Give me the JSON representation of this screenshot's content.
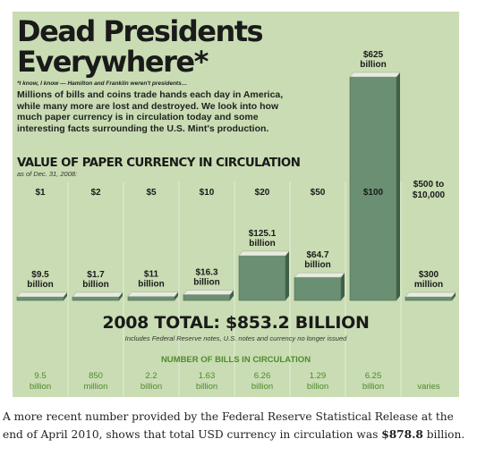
{
  "title_line1": "Dead Presidents",
  "title_line2": "Everywhere*",
  "footnote": "*I know, I know — Hamilton and Franklin weren't presidents…",
  "intro": "Millions of bills and coins trade hands each day in America, while many more are lost and destroyed. We look into how much paper currency is in circulation today and some interesting facts surrounding the U.S. Mint's production.",
  "chart_title": "VALUE OF PAPER CURRENCY IN CIRCULATION",
  "as_of": "as of Dec. 31, 2008:",
  "total": "2008 TOTAL: $853.2 BILLION",
  "total_note": "Includes Federal Reserve notes, U.S. notes and currency no longer issued",
  "bills_heading": "NUMBER OF BILLS IN CIRCULATION",
  "caption": {
    "before": "A more recent number provided by the Federal Reserve Statistical Release at the end of April 2010, shows that total USD currency in circulation was ",
    "amount": "$878.8",
    "after": " billion."
  },
  "colors": {
    "background": "#c9dcb3",
    "bar_front": "#6b8f72",
    "bar_top": "#e8ecde",
    "bill_count_text": "#4f8a2d"
  },
  "chart_data": {
    "type": "bar",
    "title": "VALUE OF PAPER CURRENCY IN CIRCULATION",
    "unit": "billion USD",
    "categories": [
      "$1",
      "$2",
      "$5",
      "$10",
      "$20",
      "$50",
      "$100",
      "$500 to $10,000"
    ],
    "values": [
      9.5,
      1.7,
      11,
      16.3,
      125.1,
      64.7,
      625,
      0.3
    ],
    "value_labels": [
      [
        "$9.5",
        "billion"
      ],
      [
        "$1.7",
        "billion"
      ],
      [
        "$11",
        "billion"
      ],
      [
        "$16.3",
        "billion"
      ],
      [
        "$125.1",
        "billion"
      ],
      [
        "$64.7",
        "billion"
      ],
      [
        "$625",
        "billion"
      ],
      [
        "$300",
        "million"
      ]
    ],
    "bill_counts": [
      [
        "9.5",
        "billion"
      ],
      [
        "850",
        "million"
      ],
      [
        "2.2",
        "billion"
      ],
      [
        "1.63",
        "billion"
      ],
      [
        "6.26",
        "billion"
      ],
      [
        "1.29",
        "billion"
      ],
      [
        "6.25",
        "billion"
      ],
      [
        "varies"
      ]
    ],
    "total_label": "2008 TOTAL: $853.2 BILLION"
  }
}
